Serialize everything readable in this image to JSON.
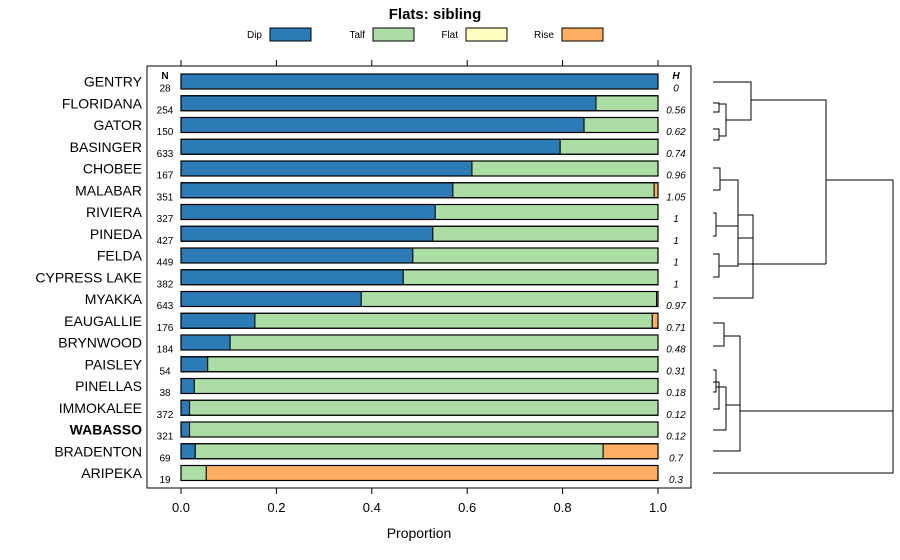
{
  "chart_data": {
    "type": "bar",
    "stacked": true,
    "orientation": "horizontal",
    "title": "Flats: sibling",
    "xlabel": "Proportion",
    "ylabel": "",
    "xlim": [
      0,
      1
    ],
    "xticks": [
      "0.0",
      "0.2",
      "0.4",
      "0.6",
      "0.8",
      "1.0"
    ],
    "n_header": "N",
    "h_header": "H",
    "legend_position": "top",
    "highlight_category": "WABASSO",
    "series": [
      {
        "name": "Dip",
        "color": "#2c7bb6",
        "values": [
          1.0,
          0.87,
          0.845,
          0.795,
          0.61,
          0.57,
          0.533,
          0.528,
          0.486,
          0.466,
          0.378,
          0.155,
          0.103,
          0.056,
          0.028,
          0.018,
          0.018,
          0.03,
          0.0
        ]
      },
      {
        "name": "Talf",
        "color": "#abdda4",
        "values": [
          0.0,
          0.13,
          0.155,
          0.205,
          0.39,
          0.422,
          0.467,
          0.472,
          0.514,
          0.534,
          0.619,
          0.833,
          0.897,
          0.944,
          0.972,
          0.982,
          0.982,
          0.855,
          0.053
        ]
      },
      {
        "name": "Flat",
        "color": "#ffffbf",
        "values": [
          0,
          0,
          0,
          0,
          0,
          0,
          0,
          0,
          0,
          0,
          0,
          0,
          0,
          0,
          0,
          0,
          0,
          0,
          0
        ]
      },
      {
        "name": "Rise",
        "color": "#fdae61",
        "values": [
          0.0,
          0.0,
          0.0,
          0.0,
          0.0,
          0.008,
          0.0,
          0.0,
          0.0,
          0.0,
          0.003,
          0.012,
          0.0,
          0.0,
          0.0,
          0.0,
          0.0,
          0.115,
          0.947
        ]
      }
    ],
    "categories": [
      "GENTRY",
      "FLORIDANA",
      "GATOR",
      "BASINGER",
      "CHOBEE",
      "MALABAR",
      "RIVIERA",
      "PINEDA",
      "FELDA",
      "CYPRESS LAKE",
      "MYAKKA",
      "EAUGALLIE",
      "BRYNWOOD",
      "PAISLEY",
      "PINELLAS",
      "IMMOKALEE",
      "WABASSO",
      "BRADENTON",
      "ARIPEKA"
    ],
    "n": [
      "28",
      "254",
      "150",
      "633",
      "167",
      "351",
      "327",
      "427",
      "449",
      "382",
      "643",
      "176",
      "184",
      "54",
      "38",
      "372",
      "321",
      "69",
      "19"
    ],
    "h": [
      "0",
      "0.56",
      "0.62",
      "0.74",
      "0.96",
      "1.05",
      "1",
      "1",
      "1",
      "1",
      "0.97",
      "0.71",
      "0.48",
      "0.31",
      "0.18",
      "0.12",
      "0.12",
      "0.7",
      "0.3"
    ]
  }
}
